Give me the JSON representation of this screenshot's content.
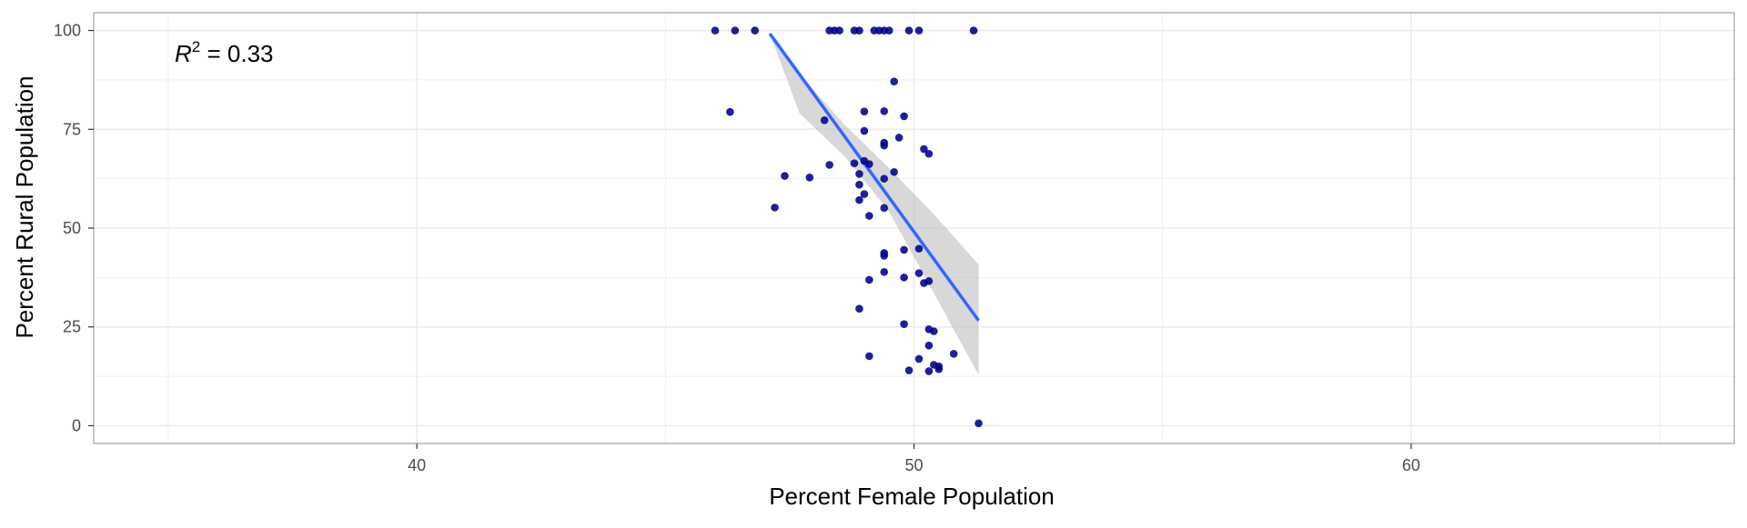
{
  "chart_data": {
    "type": "scatter",
    "xlabel": "Percent Female Population",
    "ylabel": "Percent Rural Population",
    "xlim": [
      33.5,
      66.5
    ],
    "ylim": [
      -4.5,
      104.5
    ],
    "x_ticks": [
      40,
      50,
      60
    ],
    "y_ticks": [
      0,
      25,
      50,
      75,
      100
    ],
    "grid": true,
    "annotation": {
      "variable": "R",
      "exponent": "2",
      "text": " = 0.33"
    },
    "colors": {
      "points": "#00008B",
      "fit_line": "#3366FF",
      "ribbon": "#BEBEBE",
      "grid": "#EBEBEB",
      "panel_border": "#B3B3B3"
    },
    "points": [
      {
        "x": 46.0,
        "y": 100
      },
      {
        "x": 46.4,
        "y": 100
      },
      {
        "x": 46.8,
        "y": 100
      },
      {
        "x": 48.3,
        "y": 100
      },
      {
        "x": 48.4,
        "y": 100
      },
      {
        "x": 48.5,
        "y": 100
      },
      {
        "x": 48.8,
        "y": 100
      },
      {
        "x": 48.9,
        "y": 100
      },
      {
        "x": 49.2,
        "y": 100
      },
      {
        "x": 49.3,
        "y": 100
      },
      {
        "x": 49.4,
        "y": 100
      },
      {
        "x": 49.5,
        "y": 100
      },
      {
        "x": 49.9,
        "y": 100
      },
      {
        "x": 50.1,
        "y": 100
      },
      {
        "x": 51.2,
        "y": 100
      },
      {
        "x": 46.3,
        "y": 79.4
      },
      {
        "x": 49.6,
        "y": 87.1
      },
      {
        "x": 49.4,
        "y": 79.6
      },
      {
        "x": 49.0,
        "y": 79.5
      },
      {
        "x": 49.8,
        "y": 78.3
      },
      {
        "x": 48.2,
        "y": 77.3
      },
      {
        "x": 49.0,
        "y": 74.6
      },
      {
        "x": 49.7,
        "y": 72.9
      },
      {
        "x": 49.4,
        "y": 71.6
      },
      {
        "x": 49.4,
        "y": 70.9
      },
      {
        "x": 50.2,
        "y": 70.0
      },
      {
        "x": 50.3,
        "y": 68.8
      },
      {
        "x": 49.0,
        "y": 67.0
      },
      {
        "x": 48.8,
        "y": 66.4
      },
      {
        "x": 49.1,
        "y": 66.2
      },
      {
        "x": 48.3,
        "y": 66.0
      },
      {
        "x": 49.6,
        "y": 64.2
      },
      {
        "x": 48.9,
        "y": 63.7
      },
      {
        "x": 47.4,
        "y": 63.2
      },
      {
        "x": 47.9,
        "y": 62.8
      },
      {
        "x": 49.4,
        "y": 62.5
      },
      {
        "x": 48.9,
        "y": 61.0
      },
      {
        "x": 49.0,
        "y": 58.6
      },
      {
        "x": 48.9,
        "y": 57.1
      },
      {
        "x": 47.2,
        "y": 55.2
      },
      {
        "x": 49.4,
        "y": 55.1
      },
      {
        "x": 49.1,
        "y": 53.1
      },
      {
        "x": 49.4,
        "y": 43.7
      },
      {
        "x": 49.4,
        "y": 43.0
      },
      {
        "x": 49.8,
        "y": 44.5
      },
      {
        "x": 50.1,
        "y": 44.8
      },
      {
        "x": 49.4,
        "y": 38.9
      },
      {
        "x": 50.1,
        "y": 38.6
      },
      {
        "x": 49.8,
        "y": 37.5
      },
      {
        "x": 49.1,
        "y": 36.9
      },
      {
        "x": 50.2,
        "y": 36.1
      },
      {
        "x": 50.3,
        "y": 36.6
      },
      {
        "x": 48.9,
        "y": 29.6
      },
      {
        "x": 49.8,
        "y": 25.7
      },
      {
        "x": 50.3,
        "y": 24.4
      },
      {
        "x": 50.4,
        "y": 23.9
      },
      {
        "x": 50.3,
        "y": 20.3
      },
      {
        "x": 49.1,
        "y": 17.6
      },
      {
        "x": 50.1,
        "y": 16.9
      },
      {
        "x": 50.8,
        "y": 18.2
      },
      {
        "x": 50.4,
        "y": 15.4
      },
      {
        "x": 50.5,
        "y": 15.0
      },
      {
        "x": 49.9,
        "y": 14.0
      },
      {
        "x": 50.3,
        "y": 13.8
      },
      {
        "x": 50.5,
        "y": 14.3
      },
      {
        "x": 51.3,
        "y": 0.6
      }
    ],
    "fit_line": {
      "x": [
        47.1,
        51.3
      ],
      "y": [
        99.2,
        26.6
      ]
    },
    "confidence_band": {
      "x": [
        47.1,
        47.7,
        48.6,
        49.5,
        50.4,
        51.3
      ],
      "upper": [
        99.2,
        89.0,
        76.2,
        65.2,
        53.5,
        40.8
      ],
      "lower": [
        99.2,
        79.0,
        68.2,
        54.2,
        33.5,
        12.8
      ]
    }
  }
}
